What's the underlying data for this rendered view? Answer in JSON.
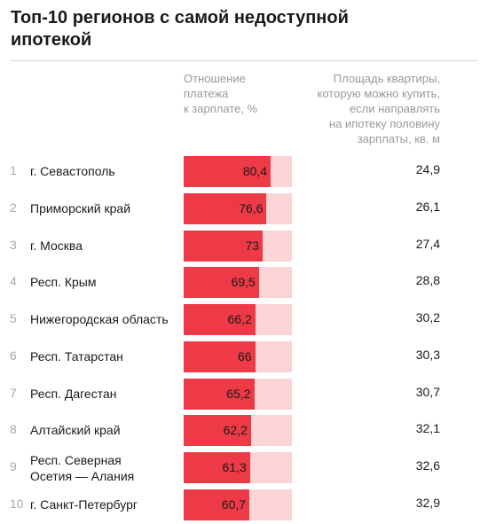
{
  "title": "Топ-10 регионов с самой недоступной\nипотекой",
  "columns": {
    "ratio": "Отношение\nплатежа\nк зарплате, %",
    "area": "Площадь квартиры,\nкоторую можно купить,\nесли направлять\nна ипотеку половину\nзарплаты, кв. м"
  },
  "colors": {
    "bar": "#ee3a46",
    "bar_background": "#fbd4d6"
  },
  "chart_data": {
    "type": "bar",
    "orientation": "horizontal",
    "title": "Топ-10 регионов с самой недоступной ипотекой",
    "xlim": [
      0,
      100
    ],
    "categories": [
      "г. Севастополь",
      "Приморский край",
      "г. Москва",
      "Респ. Крым",
      "Нижегородская область",
      "Респ. Татарстан",
      "Респ. Дагестан",
      "Алтайский край",
      "Респ. Северная\nОсетия — Алания",
      "г. Санкт-Петербург"
    ],
    "ranks": [
      "1",
      "2",
      "3",
      "4",
      "5",
      "6",
      "7",
      "8",
      "9",
      "10"
    ],
    "series": [
      {
        "name": "Отношение платежа к зарплате, %",
        "values": [
          80.4,
          76.6,
          73,
          69.5,
          66.2,
          66,
          65.2,
          62.2,
          61.3,
          60.7
        ],
        "labels": [
          "80,4",
          "76,6",
          "73",
          "69,5",
          "66,2",
          "66",
          "65,2",
          "62,2",
          "61,3",
          "60,7"
        ]
      },
      {
        "name": "Площадь квартиры, которую можно купить, если направлять на ипотеку половину зарплаты, кв. м",
        "values": [
          24.9,
          26.1,
          27.4,
          28.8,
          30.2,
          30.3,
          30.7,
          32.1,
          32.6,
          32.9
        ],
        "labels": [
          "24,9",
          "26,1",
          "27,4",
          "28,8",
          "30,2",
          "30,3",
          "30,7",
          "32,1",
          "32,6",
          "32,9"
        ]
      }
    ]
  }
}
